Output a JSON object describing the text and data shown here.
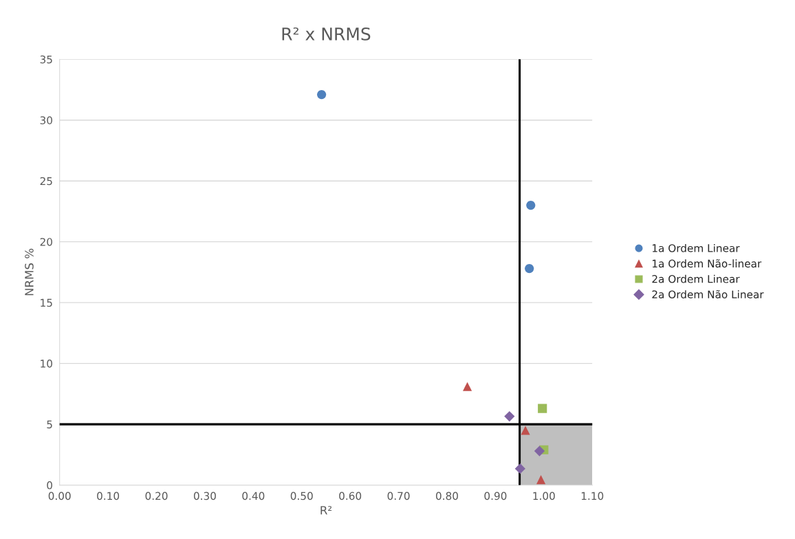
{
  "chart_data": {
    "type": "scatter",
    "title": "R² x NRMS",
    "xlabel": "R²",
    "ylabel": "NRMS %",
    "xlim": [
      0,
      1.1
    ],
    "xticks": [
      {
        "value": 0,
        "label": "0.00"
      },
      {
        "value": 0.1,
        "label": "0.10"
      },
      {
        "value": 0.2,
        "label": "0.20"
      },
      {
        "value": 0.3,
        "label": "0.30"
      },
      {
        "value": 0.4,
        "label": "0.40"
      },
      {
        "value": 0.5,
        "label": "0.50"
      },
      {
        "value": 0.6,
        "label": "0.60"
      },
      {
        "value": 0.7,
        "label": "0.70"
      },
      {
        "value": 0.8,
        "label": "0.80"
      },
      {
        "value": 0.9,
        "label": "0.90"
      },
      {
        "value": 1.0,
        "label": "1.00"
      },
      {
        "value": 1.1,
        "label": "1.10"
      }
    ],
    "ylim": [
      0,
      35
    ],
    "yticks": [
      0,
      5,
      10,
      15,
      20,
      25,
      30,
      35
    ],
    "grid": "y",
    "legend": "right",
    "series": [
      {
        "type": "area",
        "color": "#bfbfbf",
        "x": [
          0.95,
          1.1
        ],
        "values": [
          5,
          5
        ]
      },
      {
        "name": "1a Ordem Linear",
        "color": "#4f81bd",
        "marker": "circle",
        "x": [
          0.541,
          0.973,
          0.97
        ],
        "values": [
          32.1,
          23.0,
          17.8
        ]
      },
      {
        "name": "1a Ordem Não-linear",
        "color": "#c0504d",
        "marker": "triangle",
        "x": [
          0.842,
          0.962,
          0.994
        ],
        "values": [
          8.1,
          4.5,
          0.45
        ]
      },
      {
        "name": "2a Ordem Linear",
        "color": "#9bbb59",
        "marker": "square",
        "x": [
          0.997,
          1.0
        ],
        "values": [
          6.3,
          2.9
        ]
      },
      {
        "name": "2a Ordem Não Linear",
        "color": "#8064a2",
        "marker": "diamond",
        "x": [
          0.929,
          0.991,
          0.951
        ],
        "values": [
          5.65,
          2.8,
          1.35
        ]
      }
    ],
    "ref_lines": [
      {
        "axis": "x",
        "value": 0.95,
        "color": "#000000"
      },
      {
        "axis": "y",
        "value": 5,
        "color": "#000000"
      }
    ]
  }
}
